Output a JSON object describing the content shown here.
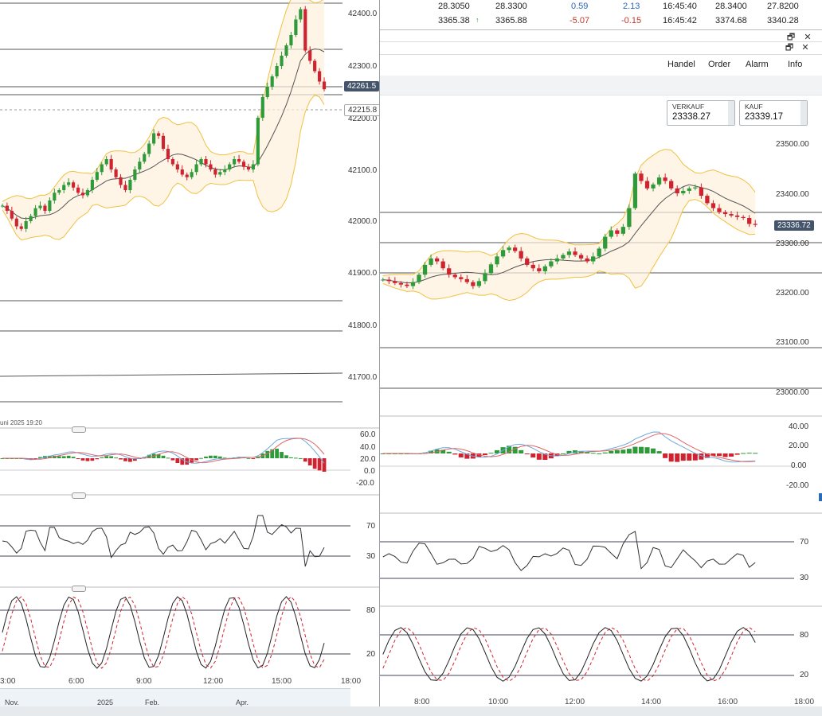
{
  "quotes": [
    {
      "c1": "28.3050",
      "c2": "28.3300",
      "chg": "0.59",
      "pct": "2.13",
      "time": "16:45:40",
      "c6": "28.3400",
      "c7": "27.8200",
      "chg_color": "#2a6ab8"
    },
    {
      "c1": "3365.38",
      "arrow": "↑",
      "c2": "3365.88",
      "chg": "-5.07",
      "pct": "-0.15",
      "time": "16:45:42",
      "c6": "3374.68",
      "c7": "3340.28",
      "chg_color": "#c0392b"
    }
  ],
  "window_controls": {
    "restore": "🗗",
    "close": "✕"
  },
  "menu": {
    "handel": "Handel",
    "order": "Order",
    "alarm": "Alarm",
    "info": "Info"
  },
  "trade": {
    "sell_label": "VERKAUF",
    "sell_value": "23338.27",
    "buy_label": "KAUF",
    "buy_value": "23339.17"
  },
  "left_chart": {
    "price_axis": [
      "42400.0",
      "42300.0",
      "42200.0",
      "42100.0",
      "42000.0",
      "41900.0",
      "41800.0",
      "41700.0"
    ],
    "current_price": "42261.5",
    "line_price": "42215.8",
    "date_label": "uni 2025 19:20",
    "macd_axis": [
      "60.0",
      "40.0",
      "20.0",
      "0.0",
      "-20.0"
    ],
    "rsi_axis": [
      "70",
      "30"
    ],
    "stoch_axis": [
      "80",
      "20"
    ],
    "time_axis": [
      "3:00",
      "6:00",
      "9:00",
      "12:00",
      "15:00",
      "18:00"
    ],
    "navigator": [
      "Nov.",
      "2025",
      "Feb.",
      "Apr."
    ]
  },
  "right_chart": {
    "price_axis": [
      "23500.00",
      "23400.00",
      "23300.00",
      "23200.00",
      "23100.00",
      "23000.00"
    ],
    "current_price": "23336.72",
    "macd_axis": [
      "40.00",
      "20.00",
      "0.00",
      "-20.00"
    ],
    "rsi_axis": [
      "70",
      "30"
    ],
    "stoch_axis": [
      "80",
      "20"
    ],
    "time_axis": [
      "8:00",
      "10:00",
      "12:00",
      "14:00",
      "16:00",
      "18:00"
    ]
  },
  "colors": {
    "up": "#2e9a3a",
    "down": "#d0232f",
    "band": "#f0c040",
    "ma": "#555555",
    "macd": "#6fa8dc",
    "signal": "#e06666",
    "tag_bg": "#44546a"
  },
  "left_series": [
    42030,
    42020,
    42005,
    41990,
    41985,
    42000,
    42010,
    42025,
    42030,
    42020,
    42040,
    42055,
    42060,
    42070,
    42075,
    42065,
    42055,
    42050,
    42060,
    42080,
    42095,
    42110,
    42120,
    42100,
    42085,
    42070,
    42060,
    42080,
    42100,
    42115,
    42130,
    42150,
    42170,
    42165,
    42140,
    42120,
    42110,
    42100,
    42090,
    42085,
    42095,
    42110,
    42120,
    42110,
    42100,
    42090,
    42095,
    42100,
    42110,
    42120,
    42115,
    42105,
    42100,
    42110,
    42200,
    42240,
    42260,
    42280,
    42300,
    42320,
    42340,
    42360,
    42390,
    42410,
    42330,
    42310,
    42290,
    42270,
    42255
  ],
  "right_series": [
    23225,
    23222,
    23218,
    23215,
    23212,
    23220,
    23235,
    23255,
    23268,
    23262,
    23248,
    23235,
    23230,
    23226,
    23220,
    23212,
    23222,
    23238,
    23256,
    23272,
    23285,
    23290,
    23283,
    23268,
    23255,
    23248,
    23242,
    23252,
    23262,
    23268,
    23275,
    23282,
    23275,
    23268,
    23262,
    23272,
    23288,
    23312,
    23325,
    23318,
    23332,
    23370,
    23440,
    23425,
    23410,
    23418,
    23432,
    23425,
    23410,
    23400,
    23405,
    23410,
    23412,
    23395,
    23380,
    23370,
    23362,
    23358,
    23355,
    23352,
    23350,
    23338,
    23336
  ]
}
